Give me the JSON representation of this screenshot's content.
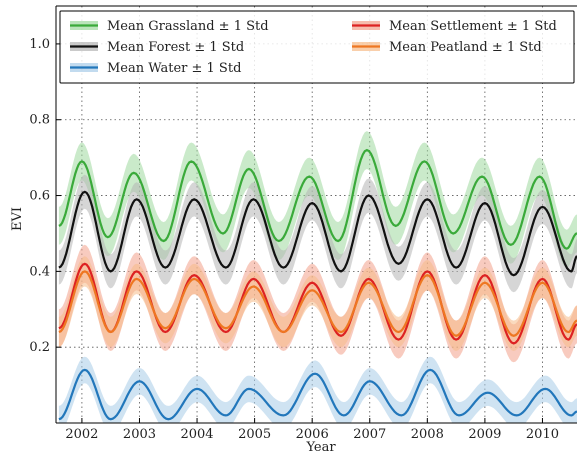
{
  "chart_data": {
    "type": "line",
    "title": "",
    "xlabel": "Year",
    "ylabel": "EVI",
    "xlim": [
      2001.55,
      2010.6
    ],
    "ylim": [
      0.0,
      1.1
    ],
    "grid": true,
    "legend_placement": "top",
    "x_ticks": [
      {
        "value": 2002,
        "label": "2002"
      },
      {
        "value": 2003,
        "label": "2003"
      },
      {
        "value": 2004,
        "label": "2004"
      },
      {
        "value": 2005,
        "label": "2005"
      },
      {
        "value": 2006,
        "label": "2006"
      },
      {
        "value": 2007,
        "label": "2007"
      },
      {
        "value": 2008,
        "label": "2008"
      },
      {
        "value": 2009,
        "label": "2009"
      },
      {
        "value": 2010,
        "label": "2010"
      }
    ],
    "y_ticks": [
      {
        "value": 0.2,
        "label": "0.2"
      },
      {
        "value": 0.4,
        "label": "0.4"
      },
      {
        "value": 0.6,
        "label": "0.6"
      },
      {
        "value": 0.8,
        "label": "0.8"
      },
      {
        "value": 1.0,
        "label": "1.0"
      }
    ],
    "legend_columns": [
      [
        "Mean Grassland ± 1 Std",
        "Mean Forest ± 1 Std",
        "Mean Water ± 1 Std"
      ],
      [
        "Mean Settlement ± 1 Std",
        "Mean Peatland ± 1 Std"
      ]
    ],
    "series": [
      {
        "name": "Mean Grassland ± 1 Std",
        "color": "#3aaa3a",
        "band_color": "#9ed89e",
        "std": 0.05,
        "points": [
          [
            2001.6,
            0.52
          ],
          [
            2002.0,
            0.69
          ],
          [
            2002.45,
            0.49
          ],
          [
            2002.9,
            0.66
          ],
          [
            2003.42,
            0.48
          ],
          [
            2003.9,
            0.69
          ],
          [
            2004.45,
            0.5
          ],
          [
            2004.9,
            0.67
          ],
          [
            2005.42,
            0.48
          ],
          [
            2005.95,
            0.65
          ],
          [
            2006.45,
            0.48
          ],
          [
            2006.95,
            0.72
          ],
          [
            2007.45,
            0.52
          ],
          [
            2007.95,
            0.69
          ],
          [
            2008.45,
            0.5
          ],
          [
            2008.95,
            0.65
          ],
          [
            2009.45,
            0.47
          ],
          [
            2009.95,
            0.65
          ],
          [
            2010.42,
            0.46
          ],
          [
            2010.6,
            0.5
          ]
        ]
      },
      {
        "name": "Mean Forest ± 1 Std",
        "color": "#111111",
        "band_color": "#b4b4b4",
        "std": 0.045,
        "points": [
          [
            2001.6,
            0.41
          ],
          [
            2002.05,
            0.61
          ],
          [
            2002.5,
            0.4
          ],
          [
            2002.95,
            0.59
          ],
          [
            2003.45,
            0.41
          ],
          [
            2003.95,
            0.59
          ],
          [
            2004.5,
            0.41
          ],
          [
            2004.98,
            0.59
          ],
          [
            2005.5,
            0.41
          ],
          [
            2006.0,
            0.58
          ],
          [
            2006.5,
            0.4
          ],
          [
            2006.98,
            0.6
          ],
          [
            2007.5,
            0.42
          ],
          [
            2008.0,
            0.59
          ],
          [
            2008.5,
            0.41
          ],
          [
            2009.0,
            0.58
          ],
          [
            2009.5,
            0.39
          ],
          [
            2010.0,
            0.57
          ],
          [
            2010.5,
            0.4
          ],
          [
            2010.6,
            0.44
          ]
        ]
      },
      {
        "name": "Mean Settlement ± 1 Std",
        "color": "#dd2222",
        "band_color": "#f2a08a",
        "std": 0.05,
        "points": [
          [
            2001.6,
            0.25
          ],
          [
            2002.05,
            0.42
          ],
          [
            2002.5,
            0.24
          ],
          [
            2002.95,
            0.4
          ],
          [
            2003.45,
            0.24
          ],
          [
            2003.95,
            0.39
          ],
          [
            2004.5,
            0.24
          ],
          [
            2004.98,
            0.38
          ],
          [
            2005.5,
            0.24
          ],
          [
            2006.0,
            0.37
          ],
          [
            2006.5,
            0.23
          ],
          [
            2006.98,
            0.38
          ],
          [
            2007.5,
            0.22
          ],
          [
            2008.0,
            0.4
          ],
          [
            2008.5,
            0.22
          ],
          [
            2009.0,
            0.39
          ],
          [
            2009.5,
            0.21
          ],
          [
            2010.0,
            0.38
          ],
          [
            2010.45,
            0.22
          ],
          [
            2010.6,
            0.26
          ]
        ]
      },
      {
        "name": "Mean Peatland ± 1 Std",
        "color": "#ee7722",
        "band_color": "#f6bb88",
        "std": 0.04,
        "points": [
          [
            2001.6,
            0.24
          ],
          [
            2002.05,
            0.4
          ],
          [
            2002.5,
            0.24
          ],
          [
            2002.95,
            0.38
          ],
          [
            2003.45,
            0.25
          ],
          [
            2003.95,
            0.38
          ],
          [
            2004.5,
            0.25
          ],
          [
            2004.98,
            0.36
          ],
          [
            2005.5,
            0.24
          ],
          [
            2006.0,
            0.35
          ],
          [
            2006.5,
            0.24
          ],
          [
            2006.98,
            0.37
          ],
          [
            2007.5,
            0.24
          ],
          [
            2008.0,
            0.39
          ],
          [
            2008.5,
            0.23
          ],
          [
            2009.0,
            0.37
          ],
          [
            2009.5,
            0.23
          ],
          [
            2010.0,
            0.37
          ],
          [
            2010.45,
            0.24
          ],
          [
            2010.6,
            0.27
          ]
        ]
      },
      {
        "name": "Mean Water ± 1 Std",
        "color": "#2277bb",
        "band_color": "#a8cce8",
        "std": 0.035,
        "points": [
          [
            2001.6,
            0.01
          ],
          [
            2002.05,
            0.14
          ],
          [
            2002.5,
            0.01
          ],
          [
            2003.0,
            0.11
          ],
          [
            2003.5,
            0.01
          ],
          [
            2004.0,
            0.09
          ],
          [
            2004.5,
            0.02
          ],
          [
            2004.9,
            0.09
          ],
          [
            2005.5,
            0.02
          ],
          [
            2006.05,
            0.13
          ],
          [
            2006.55,
            0.02
          ],
          [
            2007.0,
            0.11
          ],
          [
            2007.55,
            0.02
          ],
          [
            2008.05,
            0.14
          ],
          [
            2008.55,
            0.02
          ],
          [
            2009.05,
            0.08
          ],
          [
            2009.55,
            0.02
          ],
          [
            2010.05,
            0.09
          ],
          [
            2010.5,
            0.02
          ],
          [
            2010.6,
            0.03
          ]
        ]
      }
    ]
  }
}
